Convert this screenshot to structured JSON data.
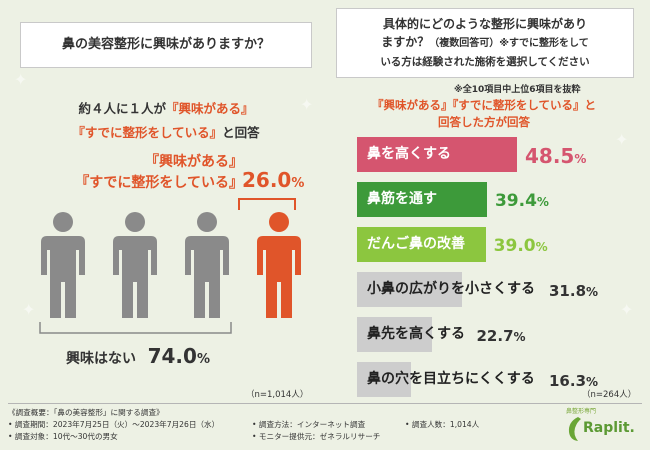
{
  "colors": {
    "accent": "#e0552a",
    "top_bar": "#d5556f",
    "green_dark": "#3d9a3a",
    "green_light": "#8cc63f",
    "gray_bar": "#cdcdcd",
    "person_gray": "#8a8a8a"
  },
  "left_panel": {
    "question": "鼻の美容整形に興味がありますか？",
    "summary_prefix": "約４人に１人が",
    "summary_quote1": "『興味がある』",
    "summary_quote2": "『すでに整形をしている』",
    "summary_suffix": "と回答",
    "highlight_line1": "『興味がある』",
    "highlight_line2": "『すでに整形をしている』",
    "highlight_value": "26.0",
    "highlight_unit": "%",
    "no_interest_label": "興味はない",
    "no_interest_value": "74.0",
    "no_interest_unit": "%",
    "n_note": "（n=1,014人）"
  },
  "right_panel": {
    "question_line1": "具体的にどのような整形に興味があり",
    "question_line2": "ますか？",
    "question_line2_small": "（複数回答可）※すでに整形をして",
    "question_line3": "いる方は経験された施術を選択してください",
    "note": "※全10項目中上位6項目を抜粋",
    "sub_line1": "『興味がある』『すでに整形をしている』と",
    "sub_line2": "回答した方が回答",
    "n_note": "（n=264人）"
  },
  "chart_data": [
    {
      "type": "pie",
      "title": "鼻の美容整形に興味がありますか？",
      "categories": [
        "『興味がある』『すでに整形をしている』",
        "興味はない"
      ],
      "values": [
        26.0,
        74.0
      ],
      "unit": "%",
      "n": "n=1,014人"
    },
    {
      "type": "bar",
      "categories": [
        "鼻を高くする",
        "鼻筋を通す",
        "だんご鼻の改善",
        "小鼻の広がりを小さくする",
        "鼻先を高くする",
        "鼻の穴を目立ちにくくする"
      ],
      "values": [
        48.5,
        39.4,
        39.0,
        31.8,
        22.7,
        16.3
      ],
      "value_labels": [
        "48.5",
        "39.4",
        "39.0",
        "31.8",
        "22.7",
        "16.3"
      ],
      "unit": "%",
      "n": "n=264人"
    }
  ],
  "footer": {
    "overview": "《調査概要：「鼻の美容整形」に関する調査》",
    "period": "• 調査期間：2023年7月25日（火）〜2023年7月26日（水）",
    "target": "• 調査対象：10代〜30代の男女",
    "method": "• 調査方法：インターネット調査",
    "monitor": "• モニター提供元：ゼネラルリサーチ",
    "count": "• 調査人数：1,014人"
  },
  "logo": {
    "tagline": "鼻整形専門",
    "name": "Raplit."
  }
}
